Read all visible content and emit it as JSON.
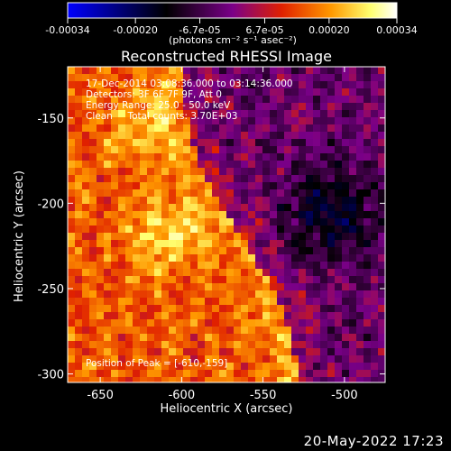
{
  "chart_data": {
    "type": "heatmap",
    "title": "Reconstructed RHESSI Image",
    "xlabel": "Heliocentric X (arcsec)",
    "ylabel": "Heliocentric Y (arcsec)",
    "xlim": [
      -670,
      -475
    ],
    "ylim": [
      -305,
      -120
    ],
    "xticks": [
      -650,
      -600,
      -550,
      -500
    ],
    "yticks": [
      -150,
      -200,
      -250,
      -300
    ],
    "colorbar": {
      "label": "(photons cm⁻² s⁻¹ asec⁻²)",
      "range": [
        -0.00034,
        0.00034
      ],
      "ticks": [
        {
          "value": -0.00034,
          "label": "-0.00034"
        },
        {
          "value": -0.0002,
          "label": "-0.00020"
        },
        {
          "value": -6.7e-05,
          "label": "-6.7e-05"
        },
        {
          "value": 6.7e-05,
          "label": "6.7e-05"
        },
        {
          "value": 0.0002,
          "label": "0.00020"
        },
        {
          "value": 0.00034,
          "label": "0.00034"
        }
      ],
      "colors": [
        "#0000ff",
        "#000000",
        "#7a0088",
        "#e02000",
        "#ff9900",
        "#ffff70",
        "#ffffff"
      ]
    },
    "annotations": [
      "17-Dec-2014 03:08:36.000 to 03:14:36.000",
      "Detectors: 3F 6F 7F 9F, Att 0",
      "Energy Range: 25.0 - 50.0 keV",
      "Clean     Total counts: 3.70E+03"
    ],
    "peak_label": "Position of Peak = [-610,-159]",
    "peak": {
      "x": -610,
      "y": -159,
      "value": 0.00034
    }
  },
  "footer": {
    "timestamp": "20-May-2022 17:23"
  }
}
